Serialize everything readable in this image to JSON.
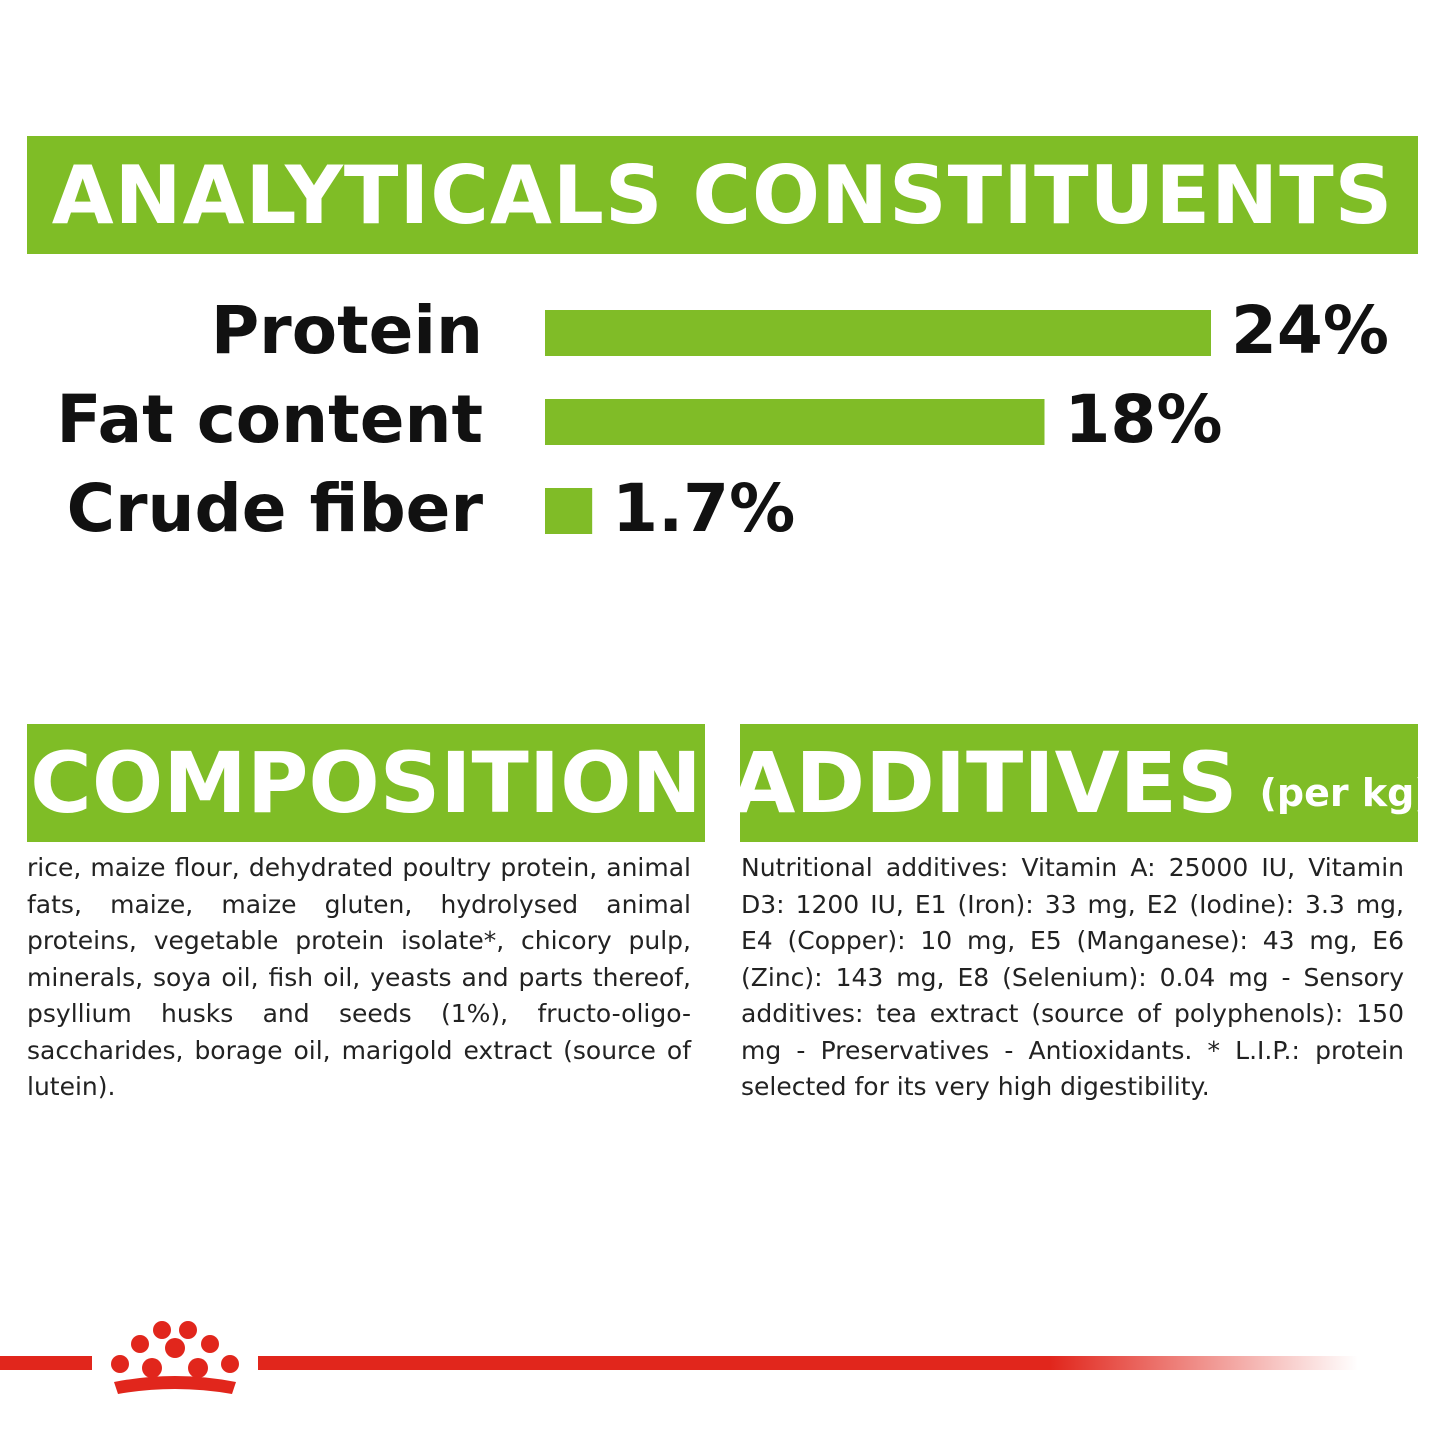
{
  "colors": {
    "green": "#7fbd26",
    "bar_green": "#80bc27",
    "text": "#111111",
    "brand_red": "#e1261c"
  },
  "analytical": {
    "title": "ANALYTICALS CONSTITUENTS"
  },
  "chart_data": {
    "type": "bar",
    "orientation": "horizontal",
    "title": "ANALYTICALS CONSTITUENTS",
    "categories": [
      "Protein",
      "Fat content",
      "Crude fiber"
    ],
    "values": [
      24,
      18,
      1.7
    ],
    "value_labels": [
      "24%",
      "18%",
      "1.7%"
    ],
    "unit": "%",
    "xlim": [
      0,
      24
    ],
    "grid": false
  },
  "composition": {
    "title": "COMPOSITION",
    "text": "rice, maize flour, dehydrated poultry protein, animal fats, maize, maize gluten, hydrolysed animal proteins, vegetable protein isolate*, chicory pulp, minerals, soya oil, fish oil, yeasts and parts thereof, psyllium husks and seeds (1%), fructo-oligo-saccharides, borage oil, marigold extract (source of lutein)."
  },
  "additives": {
    "title": "ADDITIVES",
    "subtitle": "(per kg)",
    "text": "Nutritional additives: Vitamin A: 25000 IU, Vitamin D3: 1200 IU, E1 (Iron): 33 mg, E2 (Iodine): 3.3 mg, E4 (Copper): 10 mg, E5 (Manganese): 43 mg, E6 (Zinc): 143 mg, E8 (Selenium): 0.04 mg - Sensory additives: tea extract (source of polyphenols): 150 mg - Preservatives - Antioxidants. * L.I.P.: protein selected for its very high digestibility."
  },
  "logo": {
    "icon": "crown-icon"
  }
}
